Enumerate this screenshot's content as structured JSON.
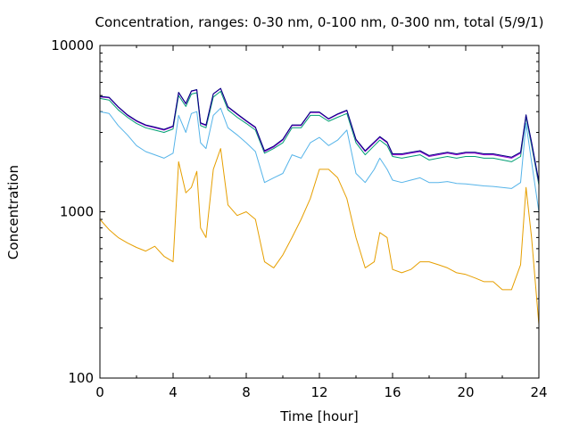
{
  "chart_data": {
    "type": "line",
    "title": "Concentration, ranges: 0-30 nm, 0-100 nm, 0-300 nm, total (5/9/1)",
    "xlabel": "Time [hour]",
    "ylabel": "Concentration",
    "xlim": [
      0,
      24
    ],
    "ylim": [
      100,
      10000
    ],
    "yscale": "log",
    "grid": false,
    "x_ticks": [
      "0",
      "4",
      "8",
      "12",
      "16",
      "20",
      "24"
    ],
    "y_ticks": [
      "100",
      "1000",
      "10000"
    ],
    "series": [
      {
        "color": "#e69f00",
        "x": [
          0,
          0.5,
          1,
          1.5,
          2,
          2.5,
          3,
          3.5,
          4,
          4.3,
          4.7,
          5,
          5.3,
          5.5,
          5.8,
          6.2,
          6.6,
          7,
          7.5,
          8,
          8.5,
          9,
          9.5,
          10,
          10.5,
          11,
          11.5,
          12,
          12.5,
          13,
          13.5,
          14,
          14.5,
          15,
          15.3,
          15.7,
          16,
          16.5,
          17,
          17.5,
          18,
          18.5,
          19,
          19.5,
          20,
          20.5,
          21,
          21.5,
          22,
          22.5,
          23,
          23.3,
          23.6,
          24
        ],
        "y": [
          900,
          780,
          700,
          650,
          610,
          580,
          620,
          540,
          500,
          2000,
          1300,
          1400,
          1750,
          800,
          700,
          1800,
          2400,
          1100,
          950,
          1000,
          900,
          500,
          460,
          550,
          700,
          900,
          1200,
          1800,
          1800,
          1600,
          1200,
          700,
          460,
          500,
          750,
          700,
          450,
          430,
          450,
          500,
          500,
          480,
          460,
          430,
          420,
          400,
          380,
          380,
          340,
          340,
          480,
          1400,
          700,
          210
        ]
      },
      {
        "color": "#56b4e9",
        "x": [
          0,
          0.5,
          1,
          1.5,
          2,
          2.5,
          3,
          3.5,
          4,
          4.3,
          4.7,
          5,
          5.3,
          5.5,
          5.8,
          6.2,
          6.6,
          7,
          7.5,
          8,
          8.5,
          9,
          9.5,
          10,
          10.5,
          11,
          11.5,
          12,
          12.5,
          13,
          13.5,
          14,
          14.5,
          15,
          15.3,
          15.7,
          16,
          16.5,
          17,
          17.5,
          18,
          18.5,
          19,
          19.5,
          20,
          20.5,
          21,
          21.5,
          22,
          22.5,
          23,
          23.3,
          23.6,
          24
        ],
        "y": [
          4000,
          3900,
          3300,
          2900,
          2500,
          2300,
          2200,
          2100,
          2250,
          3800,
          3000,
          3900,
          4000,
          2600,
          2400,
          3800,
          4200,
          3200,
          2900,
          2600,
          2300,
          1500,
          1600,
          1700,
          2200,
          2100,
          2600,
          2800,
          2500,
          2700,
          3100,
          1700,
          1500,
          1800,
          2100,
          1800,
          1550,
          1500,
          1550,
          1600,
          1500,
          1500,
          1520,
          1480,
          1470,
          1450,
          1430,
          1420,
          1400,
          1380,
          1500,
          3400,
          2000,
          1000
        ]
      },
      {
        "color": "#009e73",
        "x": [
          0,
          0.5,
          1,
          1.5,
          2,
          2.5,
          3,
          3.5,
          4,
          4.3,
          4.7,
          5,
          5.3,
          5.5,
          5.8,
          6.2,
          6.6,
          7,
          7.5,
          8,
          8.5,
          9,
          9.5,
          10,
          10.5,
          11,
          11.5,
          12,
          12.5,
          13,
          13.5,
          14,
          14.5,
          15,
          15.3,
          15.7,
          16,
          16.5,
          17,
          17.5,
          18,
          18.5,
          19,
          19.5,
          20,
          20.5,
          21,
          21.5,
          22,
          22.5,
          23,
          23.3,
          23.6,
          24
        ],
        "y": [
          4800,
          4700,
          4100,
          3700,
          3400,
          3200,
          3100,
          3000,
          3150,
          5000,
          4300,
          5100,
          5200,
          3300,
          3200,
          4900,
          5300,
          4100,
          3700,
          3400,
          3100,
          2250,
          2400,
          2600,
          3200,
          3200,
          3800,
          3800,
          3500,
          3700,
          3900,
          2600,
          2200,
          2500,
          2700,
          2500,
          2150,
          2100,
          2150,
          2200,
          2050,
          2100,
          2150,
          2100,
          2150,
          2150,
          2100,
          2100,
          2050,
          2000,
          2150,
          3700,
          2500,
          1450
        ]
      },
      {
        "color": "#9400d3",
        "x": [
          0,
          0.5,
          1,
          1.5,
          2,
          2.5,
          3,
          3.5,
          4,
          4.3,
          4.7,
          5,
          5.3,
          5.5,
          5.8,
          6.2,
          6.6,
          7,
          7.5,
          8,
          8.5,
          9,
          9.5,
          10,
          10.5,
          11,
          11.5,
          12,
          12.5,
          13,
          13.5,
          14,
          14.5,
          15,
          15.3,
          15.7,
          16,
          16.5,
          17,
          17.5,
          18,
          18.5,
          19,
          19.5,
          20,
          20.5,
          21,
          21.5,
          22,
          22.5,
          23,
          23.3,
          23.6,
          24
        ],
        "y": [
          4900,
          4850,
          4250,
          3800,
          3500,
          3300,
          3200,
          3100,
          3250,
          5200,
          4450,
          5300,
          5400,
          3400,
          3300,
          5100,
          5500,
          4250,
          3850,
          3500,
          3200,
          2300,
          2450,
          2700,
          3300,
          3300,
          3950,
          3950,
          3600,
          3850,
          4050,
          2700,
          2300,
          2600,
          2800,
          2600,
          2200,
          2200,
          2250,
          2300,
          2150,
          2200,
          2250,
          2200,
          2250,
          2250,
          2200,
          2200,
          2150,
          2100,
          2250,
          3800,
          2600,
          1500
        ]
      },
      {
        "color": "#000080",
        "x": [
          0,
          0.5,
          1,
          1.5,
          2,
          2.5,
          3,
          3.5,
          4,
          4.3,
          4.7,
          5,
          5.3,
          5.5,
          5.8,
          6.2,
          6.6,
          7,
          7.5,
          8,
          8.5,
          9,
          9.5,
          10,
          10.5,
          11,
          11.5,
          12,
          12.5,
          13,
          13.5,
          14,
          14.5,
          15,
          15.3,
          15.7,
          16,
          16.5,
          17,
          17.5,
          18,
          18.5,
          19,
          19.5,
          20,
          20.5,
          21,
          21.5,
          22,
          22.5,
          23,
          23.3,
          23.6,
          24
        ],
        "y": [
          4950,
          4880,
          4280,
          3830,
          3530,
          3330,
          3230,
          3130,
          3280,
          5230,
          4480,
          5330,
          5430,
          3430,
          3330,
          5130,
          5530,
          4280,
          3880,
          3530,
          3230,
          2330,
          2480,
          2730,
          3330,
          3330,
          3980,
          3980,
          3630,
          3880,
          4080,
          2730,
          2330,
          2630,
          2830,
          2630,
          2230,
          2230,
          2280,
          2330,
          2180,
          2230,
          2280,
          2230,
          2280,
          2280,
          2230,
          2230,
          2180,
          2130,
          2280,
          3830,
          2630,
          1520
        ]
      }
    ]
  }
}
